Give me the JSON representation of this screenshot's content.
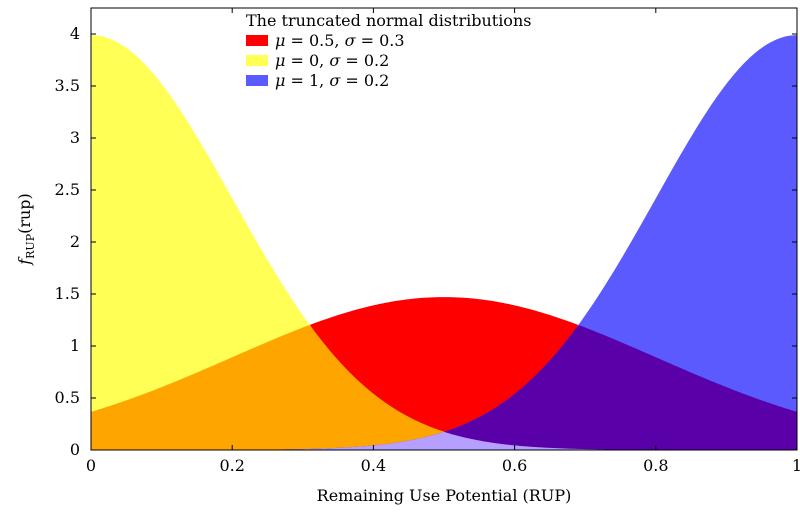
{
  "chart_data": {
    "type": "area",
    "title": "",
    "xlabel": "Remaining Use Potential (RUP)",
    "ylabel": "f_RUP(rup)",
    "ylabel_main": "f",
    "ylabel_sub": "RUP",
    "ylabel_tail": "(rup)",
    "xlim": [
      0,
      1
    ],
    "ylim": [
      0,
      4.25
    ],
    "x_ticks": [
      0,
      0.2,
      0.4,
      0.6,
      0.8,
      1
    ],
    "x_tick_labels": [
      "0",
      "0.2",
      "0.4",
      "0.6",
      "0.8",
      "1"
    ],
    "y_ticks": [
      0,
      0.5,
      1,
      1.5,
      2,
      2.5,
      3,
      3.5,
      4
    ],
    "y_tick_labels": [
      "0",
      "0.5",
      "1",
      "1.5",
      "2",
      "2.5",
      "3",
      "3.5",
      "4"
    ],
    "grid": false,
    "legend": {
      "title": "The truncated normal distributions",
      "placement": "top-center"
    },
    "overlap_colors": {
      "red_yellow": "#ffa500",
      "red_blue": "#5a00a8",
      "yellow_blue": "#b5a0ff"
    },
    "series": [
      {
        "name": "μ = 0.5, σ = 0.3",
        "mu_label": "μ",
        "mu_value": "0.5",
        "sigma_label": "σ",
        "sigma_value": "0.3",
        "mu": 0.5,
        "sigma": 0.3,
        "color": "#ff0000"
      },
      {
        "name": "μ = 0, σ = 0.2",
        "mu_label": "μ",
        "mu_value": "0",
        "sigma_label": "σ",
        "sigma_value": "0.2",
        "mu": 0,
        "sigma": 0.2,
        "color": "#ffff55"
      },
      {
        "name": "μ = 1, σ = 0.2",
        "mu_label": "μ",
        "mu_value": "1",
        "sigma_label": "σ",
        "sigma_value": "0.2",
        "mu": 1,
        "sigma": 0.2,
        "color": "#5a5aff"
      }
    ]
  }
}
